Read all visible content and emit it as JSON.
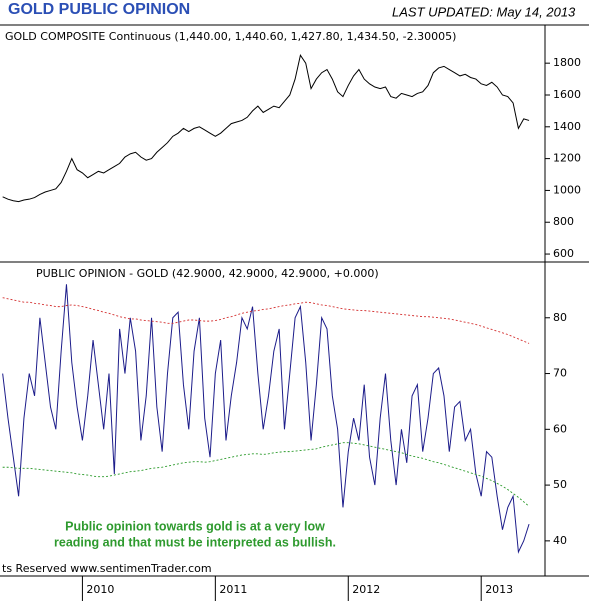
{
  "title": "GOLD PUBLIC OPINION",
  "last_updated": "LAST UPDATED:  May 14, 2013",
  "footer": "ts Reserved  www.sentimenTrader.com",
  "chart_data": [
    {
      "type": "line",
      "x": [
        2009.4,
        2009.44,
        2009.48,
        2009.52,
        2009.56,
        2009.6,
        2009.64,
        2009.68,
        2009.72,
        2009.76,
        2009.8,
        2009.84,
        2009.88,
        2009.92,
        2009.96,
        2010.0,
        2010.04,
        2010.08,
        2010.12,
        2010.16,
        2010.2,
        2010.24,
        2010.28,
        2010.32,
        2010.36,
        2010.4,
        2010.44,
        2010.48,
        2010.52,
        2010.56,
        2010.6,
        2010.64,
        2010.68,
        2010.72,
        2010.76,
        2010.8,
        2010.84,
        2010.88,
        2010.92,
        2010.96,
        2011.0,
        2011.04,
        2011.08,
        2011.12,
        2011.16,
        2011.2,
        2011.24,
        2011.28,
        2011.32,
        2011.36,
        2011.4,
        2011.44,
        2011.48,
        2011.52,
        2011.56,
        2011.6,
        2011.64,
        2011.68,
        2011.72,
        2011.76,
        2011.8,
        2011.84,
        2011.88,
        2011.92,
        2011.96,
        2012.0,
        2012.04,
        2012.08,
        2012.12,
        2012.16,
        2012.2,
        2012.24,
        2012.28,
        2012.32,
        2012.36,
        2012.4,
        2012.44,
        2012.48,
        2012.52,
        2012.56,
        2012.6,
        2012.64,
        2012.68,
        2012.72,
        2012.76,
        2012.8,
        2012.84,
        2012.88,
        2012.92,
        2012.96,
        2013.0,
        2013.04,
        2013.08,
        2013.12,
        2013.16,
        2013.2,
        2013.24,
        2013.28,
        2013.32,
        2013.36
      ],
      "series": [
        {
          "name": "GOLD COMPOSITE Continuous (1,440.00, 1,440.60, 1,427.80, 1,434.50, -2.30005)",
          "color": "#000000",
          "values": [
            960,
            945,
            935,
            930,
            940,
            945,
            955,
            975,
            990,
            1000,
            1010,
            1050,
            1120,
            1200,
            1130,
            1110,
            1080,
            1100,
            1120,
            1110,
            1130,
            1150,
            1170,
            1210,
            1230,
            1240,
            1210,
            1190,
            1200,
            1240,
            1270,
            1300,
            1340,
            1360,
            1390,
            1370,
            1390,
            1400,
            1380,
            1360,
            1340,
            1360,
            1390,
            1420,
            1430,
            1440,
            1460,
            1500,
            1530,
            1490,
            1510,
            1530,
            1520,
            1560,
            1600,
            1700,
            1850,
            1800,
            1640,
            1700,
            1740,
            1760,
            1700,
            1620,
            1590,
            1660,
            1720,
            1760,
            1700,
            1670,
            1650,
            1640,
            1650,
            1590,
            1580,
            1610,
            1600,
            1590,
            1610,
            1620,
            1660,
            1740,
            1770,
            1780,
            1760,
            1740,
            1720,
            1730,
            1710,
            1700,
            1670,
            1660,
            1680,
            1650,
            1600,
            1590,
            1550,
            1390,
            1450,
            1440
          ]
        }
      ],
      "xlim": [
        2009.38,
        2013.48
      ],
      "ylim": [
        550,
        2040
      ],
      "yticks": [
        600,
        800,
        1000,
        1200,
        1400,
        1600,
        1800
      ]
    },
    {
      "type": "line",
      "x": [
        2009.4,
        2009.44,
        2009.48,
        2009.52,
        2009.56,
        2009.6,
        2009.64,
        2009.68,
        2009.72,
        2009.76,
        2009.8,
        2009.84,
        2009.88,
        2009.92,
        2009.96,
        2010.0,
        2010.04,
        2010.08,
        2010.12,
        2010.16,
        2010.2,
        2010.24,
        2010.28,
        2010.32,
        2010.36,
        2010.4,
        2010.44,
        2010.48,
        2010.52,
        2010.56,
        2010.6,
        2010.64,
        2010.68,
        2010.72,
        2010.76,
        2010.8,
        2010.84,
        2010.88,
        2010.92,
        2010.96,
        2011.0,
        2011.04,
        2011.08,
        2011.12,
        2011.16,
        2011.2,
        2011.24,
        2011.28,
        2011.32,
        2011.36,
        2011.4,
        2011.44,
        2011.48,
        2011.52,
        2011.56,
        2011.6,
        2011.64,
        2011.68,
        2011.72,
        2011.76,
        2011.8,
        2011.84,
        2011.88,
        2011.92,
        2011.96,
        2012.0,
        2012.04,
        2012.08,
        2012.12,
        2012.16,
        2012.2,
        2012.24,
        2012.28,
        2012.32,
        2012.36,
        2012.4,
        2012.44,
        2012.48,
        2012.52,
        2012.56,
        2012.6,
        2012.64,
        2012.68,
        2012.72,
        2012.76,
        2012.8,
        2012.84,
        2012.88,
        2012.92,
        2012.96,
        2013.0,
        2013.04,
        2013.08,
        2013.12,
        2013.16,
        2013.2,
        2013.24,
        2013.28,
        2013.32,
        2013.36
      ],
      "series": [
        {
          "name": "PUBLIC OPINION - GOLD (42.9000, 42.9000, 42.9000, +0.000)",
          "color": "#1c1c8a",
          "values": [
            70,
            62,
            55,
            48,
            62,
            70,
            66,
            80,
            72,
            64,
            60,
            74,
            86,
            72,
            64,
            58,
            66,
            76,
            68,
            60,
            70,
            52,
            78,
            70,
            80,
            74,
            58,
            66,
            80,
            64,
            56,
            70,
            80,
            81,
            68,
            60,
            74,
            80,
            62,
            55,
            70,
            76,
            58,
            66,
            72,
            80,
            78,
            82,
            70,
            60,
            66,
            74,
            78,
            60,
            70,
            80,
            82,
            72,
            58,
            68,
            80,
            78,
            66,
            60,
            46,
            56,
            62,
            58,
            68,
            55,
            50,
            62,
            70,
            58,
            50,
            60,
            54,
            66,
            68,
            56,
            62,
            70,
            71,
            66,
            56,
            64,
            65,
            58,
            60,
            52,
            48,
            56,
            55,
            48,
            42,
            46,
            48,
            38,
            40,
            43
          ]
        },
        {
          "color": "#d43030",
          "dashed": true,
          "values": [
            83.6,
            83.4,
            83.2,
            83.0,
            82.8,
            82.8,
            82.6,
            82.5,
            82.3,
            82.2,
            82.0,
            82.0,
            82.2,
            82.3,
            82.2,
            82.0,
            81.8,
            81.5,
            81.3,
            81.0,
            80.8,
            80.5,
            80.2,
            80.0,
            79.8,
            79.8,
            79.6,
            79.5,
            79.4,
            79.3,
            79.2,
            79.0,
            79.0,
            79.2,
            79.4,
            79.6,
            79.6,
            79.5,
            79.4,
            79.4,
            79.5,
            79.7,
            80.0,
            80.2,
            80.5,
            80.8,
            81.0,
            81.2,
            81.3,
            81.5,
            81.6,
            81.8,
            82.0,
            82.2,
            82.3,
            82.5,
            82.6,
            82.8,
            82.7,
            82.5,
            82.3,
            82.2,
            82.0,
            81.8,
            81.6,
            81.5,
            81.4,
            81.3,
            81.3,
            81.2,
            81.1,
            81.0,
            80.9,
            80.8,
            80.7,
            80.6,
            80.5,
            80.4,
            80.3,
            80.2,
            80.2,
            80.1,
            80.0,
            79.9,
            79.8,
            79.6,
            79.4,
            79.2,
            79.0,
            78.8,
            78.5,
            78.2,
            77.9,
            77.6,
            77.3,
            77.0,
            76.6,
            76.2,
            75.8,
            75.4
          ]
        },
        {
          "color": "#2a9a2a",
          "dashed": true,
          "values": [
            53.2,
            53.2,
            53.1,
            53.0,
            53.0,
            53.0,
            52.9,
            52.8,
            52.7,
            52.6,
            52.5,
            52.4,
            52.3,
            52.2,
            52.0,
            51.9,
            51.8,
            51.6,
            51.5,
            51.5,
            51.6,
            51.8,
            52.0,
            52.2,
            52.4,
            52.5,
            52.6,
            52.8,
            53.0,
            53.1,
            53.2,
            53.4,
            53.6,
            53.8,
            54.0,
            54.1,
            54.2,
            54.2,
            54.1,
            54.2,
            54.4,
            54.6,
            54.8,
            55.0,
            55.2,
            55.4,
            55.5,
            55.6,
            55.6,
            55.5,
            55.6,
            55.8,
            55.9,
            56.0,
            56.0,
            56.1,
            56.2,
            56.3,
            56.4,
            56.5,
            56.8,
            57.0,
            57.2,
            57.4,
            57.6,
            57.6,
            57.5,
            57.4,
            57.2,
            57.0,
            56.8,
            56.6,
            56.4,
            56.2,
            56.0,
            55.8,
            55.5,
            55.2,
            55.0,
            54.8,
            54.5,
            54.2,
            54.0,
            53.7,
            53.4,
            53.1,
            52.8,
            52.5,
            52.2,
            51.9,
            51.6,
            51.2,
            50.8,
            50.3,
            49.8,
            49.2,
            48.5,
            47.8,
            47.0,
            46.2
          ]
        }
      ],
      "annotation": [
        "Public opinion towards gold is at a very low",
        "reading and that must be interpreted as bullish."
      ],
      "xlim": [
        2009.38,
        2013.48
      ],
      "xticks": [
        2010,
        2011,
        2012,
        2013
      ],
      "ylim": [
        33.7,
        90
      ],
      "yticks": [
        40,
        50,
        60,
        70,
        80
      ]
    }
  ]
}
